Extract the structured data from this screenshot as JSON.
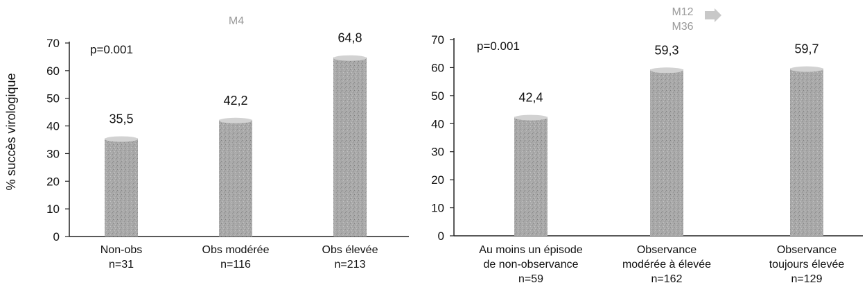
{
  "ylabel": "% succès virologique",
  "colors": {
    "bar": "#a9a9a9",
    "bar_top": "#d2d2d2",
    "axis": "#222222",
    "muted_title": "#9a9a9a"
  },
  "chart_data": [
    {
      "type": "bar",
      "title": "M4",
      "annotation": "p=0.001",
      "ylim": [
        0,
        70
      ],
      "yticks": [
        0,
        10,
        20,
        30,
        40,
        50,
        60,
        70
      ],
      "categories": [
        {
          "label_lines": [
            "Non-obs"
          ],
          "n": "n=31"
        },
        {
          "label_lines": [
            "Obs modérée"
          ],
          "n": "n=116"
        },
        {
          "label_lines": [
            "Obs élevée"
          ],
          "n": "n=213"
        }
      ],
      "values": [
        35.5,
        42.2,
        64.8
      ],
      "value_labels": [
        "35,5",
        "42,2",
        "64,8"
      ]
    },
    {
      "type": "bar",
      "title_lines": [
        "M12",
        "M36"
      ],
      "annotation": "p=0.001",
      "ylim": [
        0,
        70
      ],
      "yticks": [
        0,
        10,
        20,
        30,
        40,
        50,
        60,
        70
      ],
      "categories": [
        {
          "label_lines": [
            "Au moins un épisode",
            "de non-observance"
          ],
          "n": "n=59"
        },
        {
          "label_lines": [
            "Observance",
            "modérée à élevée"
          ],
          "n": "n=162"
        },
        {
          "label_lines": [
            "Observance",
            "toujours élevée"
          ],
          "n": "n=129"
        }
      ],
      "values": [
        42.4,
        59.3,
        59.7
      ],
      "value_labels": [
        "42,4",
        "59,3",
        "59,7"
      ]
    }
  ]
}
